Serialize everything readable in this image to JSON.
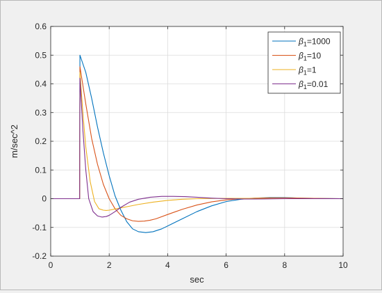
{
  "chart_data": {
    "type": "line",
    "title": "",
    "xlabel": "sec",
    "ylabel": "m/sec^2",
    "xlim": [
      0,
      10
    ],
    "ylim": [
      -0.2,
      0.6
    ],
    "xticks": [
      0,
      2,
      4,
      6,
      8,
      10
    ],
    "xtick_labels": [
      "0",
      "2",
      "4",
      "6",
      "8",
      "10"
    ],
    "yticks": [
      -0.2,
      -0.1,
      0,
      0.1,
      0.2,
      0.3,
      0.4,
      0.5,
      0.6
    ],
    "ytick_labels": [
      "-0.2",
      "-0.1",
      "0",
      "0.1",
      "0.2",
      "0.3",
      "0.4",
      "0.5",
      "0.6"
    ],
    "grid": true,
    "legend_position": "top-right",
    "series": [
      {
        "name": "β1=1000",
        "legend_symbol": "β",
        "legend_subscript": "1",
        "legend_suffix": "=1000",
        "color": "#0072BD",
        "x": [
          0,
          0.99,
          1.0,
          1.2,
          1.4,
          1.6,
          1.8,
          2.0,
          2.2,
          2.4,
          2.6,
          2.8,
          3.0,
          3.25,
          3.5,
          3.8,
          4.1,
          4.5,
          5.0,
          5.5,
          6.0,
          6.5,
          7.0,
          7.5,
          8.0,
          8.5,
          9.0,
          10.0
        ],
        "y": [
          0,
          0,
          0.5,
          0.44,
          0.35,
          0.25,
          0.16,
          0.08,
          0.01,
          -0.04,
          -0.08,
          -0.105,
          -0.115,
          -0.118,
          -0.115,
          -0.105,
          -0.09,
          -0.07,
          -0.045,
          -0.025,
          -0.01,
          -0.002,
          0.002,
          0.004,
          0.004,
          0.002,
          0.001,
          0
        ]
      },
      {
        "name": "β1=10",
        "legend_symbol": "β",
        "legend_subscript": "1",
        "legend_suffix": "=10",
        "color": "#D95319",
        "x": [
          0,
          0.99,
          1.0,
          1.2,
          1.4,
          1.6,
          1.8,
          2.0,
          2.2,
          2.4,
          2.6,
          2.8,
          3.0,
          3.2,
          3.4,
          3.6,
          4.0,
          4.5,
          5.0,
          5.5,
          6.0,
          6.5,
          7.0,
          7.5,
          8.0,
          9.0,
          10.0
        ],
        "y": [
          0,
          0,
          0.46,
          0.33,
          0.21,
          0.12,
          0.05,
          0.0,
          -0.035,
          -0.058,
          -0.07,
          -0.077,
          -0.079,
          -0.078,
          -0.075,
          -0.07,
          -0.055,
          -0.037,
          -0.022,
          -0.011,
          -0.004,
          0.0,
          0.002,
          0.003,
          0.003,
          0.001,
          0
        ]
      },
      {
        "name": "β1=1",
        "legend_symbol": "β",
        "legend_subscript": "1",
        "legend_suffix": "=1",
        "color": "#EDB120",
        "x": [
          0,
          0.99,
          1.0,
          1.1,
          1.2,
          1.35,
          1.5,
          1.65,
          1.8,
          1.9,
          2.0,
          2.2,
          2.4,
          2.7,
          3.0,
          3.5,
          4.0,
          4.5,
          5.0,
          5.5,
          6.0,
          7.0,
          8.0,
          10.0
        ],
        "y": [
          0,
          0,
          0.44,
          0.3,
          0.18,
          0.06,
          -0.01,
          -0.035,
          -0.04,
          -0.041,
          -0.04,
          -0.036,
          -0.032,
          -0.026,
          -0.02,
          -0.012,
          -0.006,
          -0.002,
          0.0,
          0.001,
          0.001,
          0.001,
          0.0,
          0
        ]
      },
      {
        "name": "β1=0.01",
        "legend_symbol": "β",
        "legend_subscript": "1",
        "legend_suffix": "=0.01",
        "color": "#7E2F8E",
        "x": [
          0,
          0.99,
          1.0,
          1.1,
          1.2,
          1.3,
          1.45,
          1.6,
          1.75,
          1.9,
          2.0,
          2.2,
          2.4,
          2.7,
          3.0,
          3.4,
          3.8,
          4.2,
          4.6,
          5.0,
          5.5,
          6.0,
          6.5,
          7.0,
          8.0,
          10.0
        ],
        "y": [
          0,
          0,
          0.42,
          0.24,
          0.1,
          0.0,
          -0.045,
          -0.06,
          -0.064,
          -0.062,
          -0.058,
          -0.045,
          -0.03,
          -0.012,
          -0.002,
          0.005,
          0.008,
          0.008,
          0.007,
          0.005,
          0.002,
          0.0,
          -0.001,
          -0.001,
          0.0,
          0
        ]
      }
    ]
  }
}
